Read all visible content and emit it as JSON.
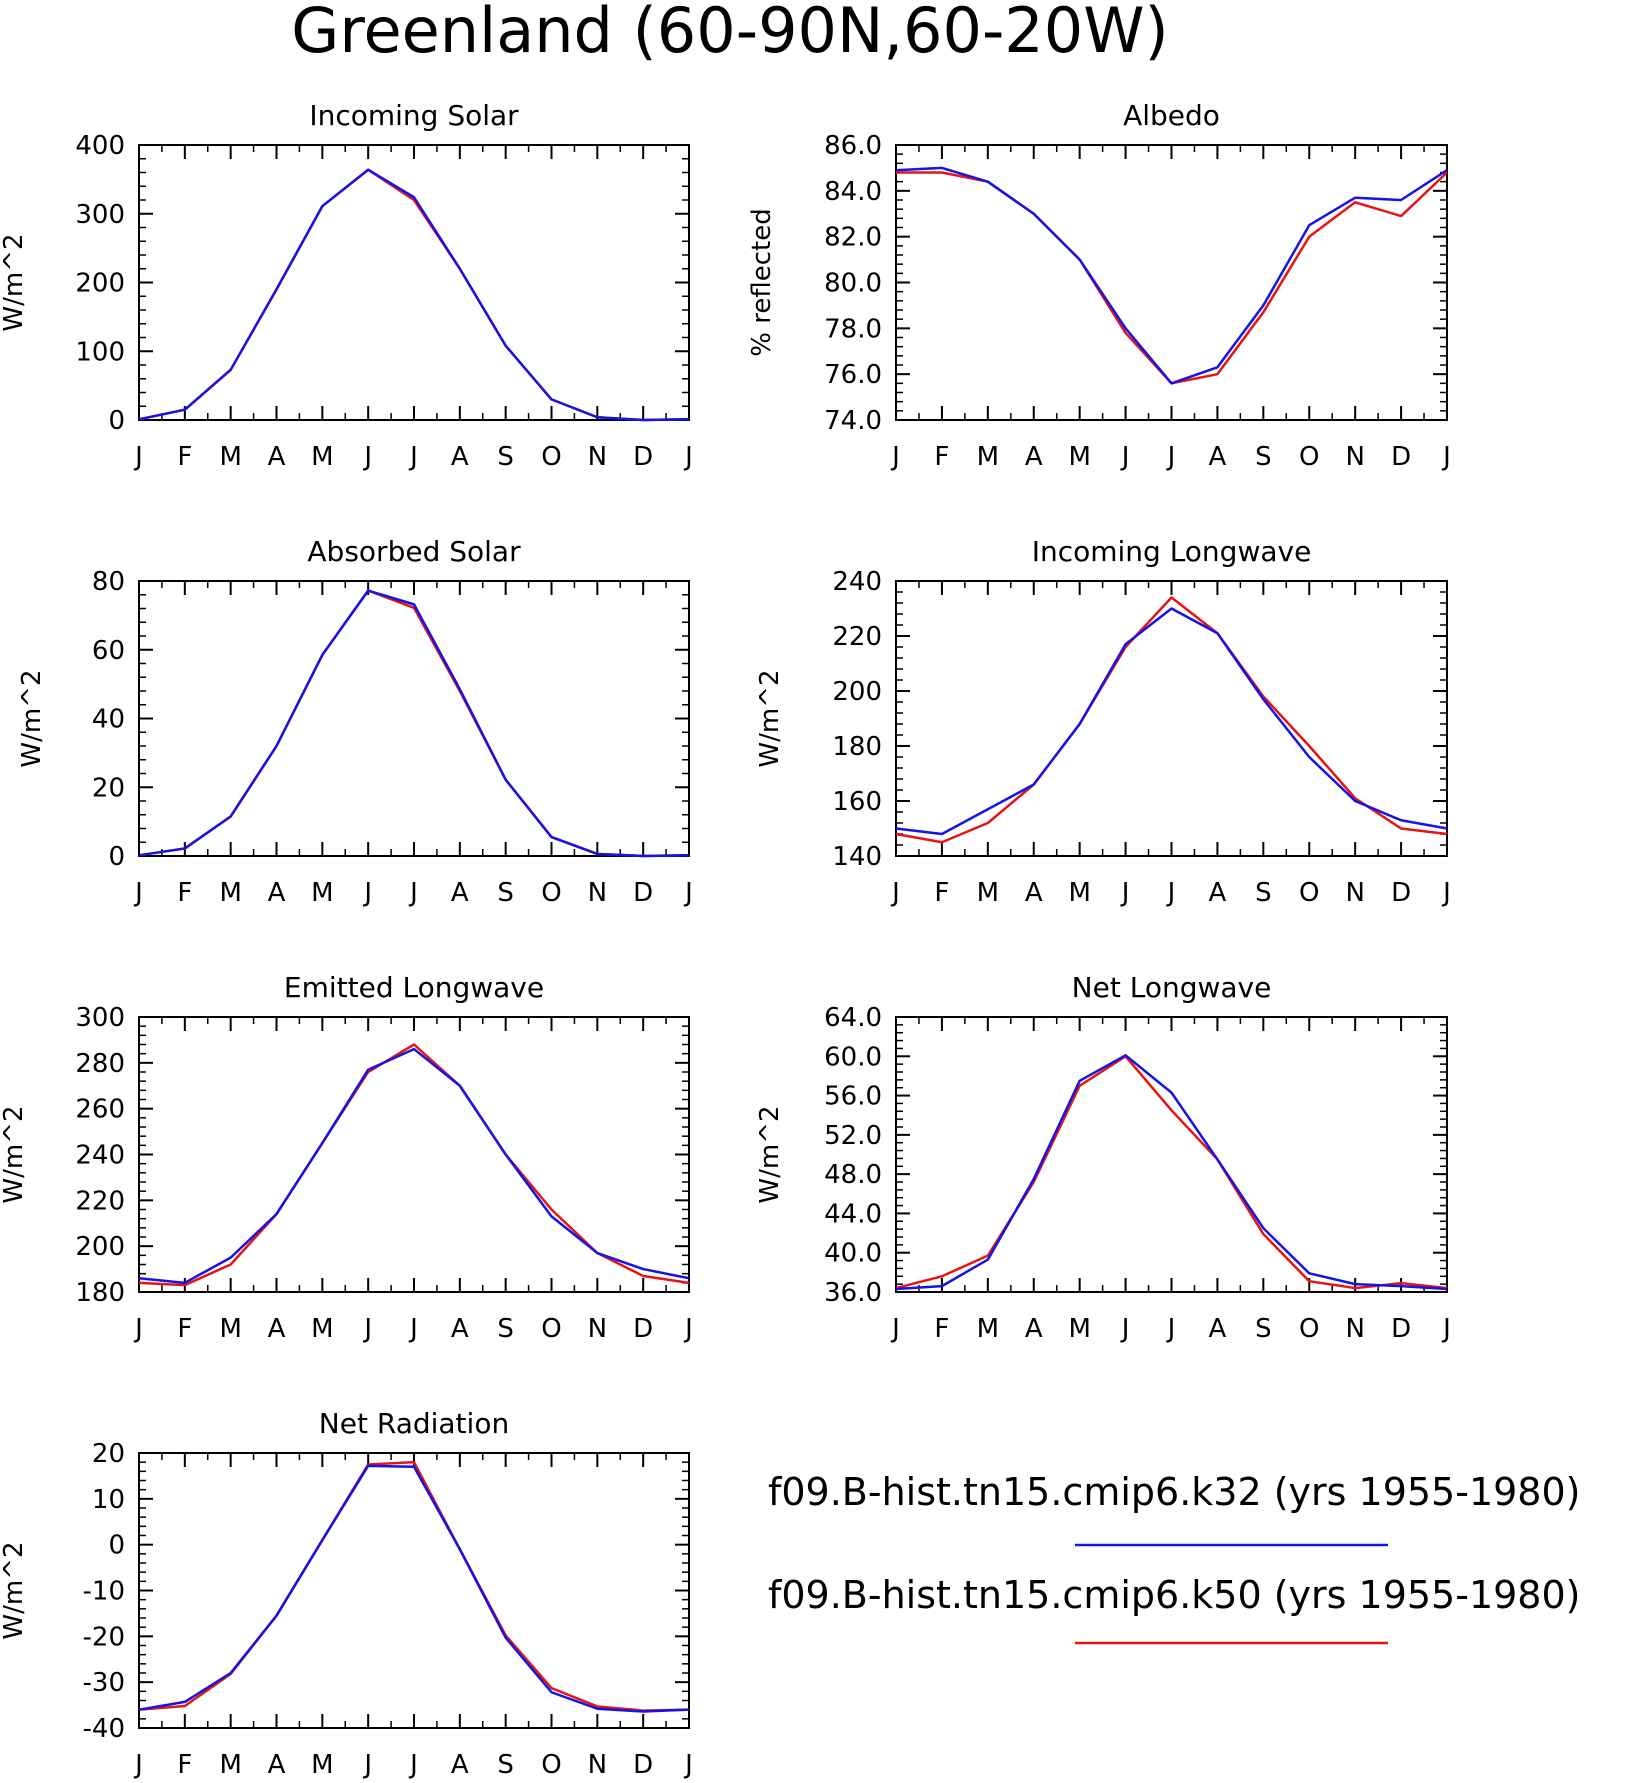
{
  "title": "Greenland (60-90N,60-20W)",
  "colors": {
    "k32": "#1414e6",
    "k50": "#e61414"
  },
  "legend": [
    {
      "label": "f09.B-hist.tn15.cmip6.k32 (yrs 1955-1980)",
      "color": "#1414e6"
    },
    {
      "label": "f09.B-hist.tn15.cmip6.k50 (yrs 1955-1980)",
      "color": "#e61414"
    }
  ],
  "chart_data": [
    {
      "type": "line",
      "title": "Incoming Solar",
      "ylabel": "W/m^2",
      "categories": [
        "J",
        "F",
        "M",
        "A",
        "M",
        "J",
        "J",
        "A",
        "S",
        "O",
        "N",
        "D",
        "J"
      ],
      "ylim": [
        0,
        400
      ],
      "yticks": [
        0,
        100,
        200,
        300,
        400
      ],
      "ytick_labels": [
        "0",
        "100",
        "200",
        "300",
        "400"
      ],
      "series": [
        {
          "name": "f09.B-hist.tn15.cmip6.k32",
          "color": "#1414e6",
          "values": [
            1,
            15,
            73,
            190,
            311,
            364,
            324,
            220,
            108,
            30,
            4,
            0,
            1
          ]
        },
        {
          "name": "f09.B-hist.tn15.cmip6.k50",
          "color": "#e61414",
          "values": [
            1,
            15,
            73,
            190,
            311,
            364,
            320,
            220,
            108,
            30,
            4,
            0,
            1
          ]
        }
      ]
    },
    {
      "type": "line",
      "title": "Albedo",
      "ylabel": "% reflected",
      "categories": [
        "J",
        "F",
        "M",
        "A",
        "M",
        "J",
        "J",
        "A",
        "S",
        "O",
        "N",
        "D",
        "J"
      ],
      "ylim": [
        74,
        86
      ],
      "yticks": [
        74,
        76,
        78,
        80,
        82,
        84,
        86
      ],
      "ytick_labels": [
        "74.0",
        "76.0",
        "78.0",
        "80.0",
        "82.0",
        "84.0",
        "86.0"
      ],
      "series": [
        {
          "name": "f09.B-hist.tn15.cmip6.k32",
          "color": "#1414e6",
          "values": [
            84.9,
            85.0,
            84.4,
            83.0,
            81.0,
            78.0,
            75.6,
            76.3,
            79.0,
            82.5,
            83.7,
            83.6,
            84.9
          ]
        },
        {
          "name": "f09.B-hist.tn15.cmip6.k50",
          "color": "#e61414",
          "values": [
            84.8,
            84.8,
            84.4,
            83.0,
            81.0,
            77.8,
            75.6,
            76.0,
            78.7,
            82.0,
            83.5,
            82.9,
            84.8
          ]
        }
      ]
    },
    {
      "type": "line",
      "title": "Absorbed Solar",
      "ylabel": "W/m^2",
      "categories": [
        "J",
        "F",
        "M",
        "A",
        "M",
        "J",
        "J",
        "A",
        "S",
        "O",
        "N",
        "D",
        "J"
      ],
      "ylim": [
        0,
        80
      ],
      "yticks": [
        0,
        20,
        40,
        60,
        80
      ],
      "ytick_labels": [
        "0",
        "20",
        "40",
        "60",
        "80"
      ],
      "series": [
        {
          "name": "f09.B-hist.tn15.cmip6.k32",
          "color": "#1414e6",
          "values": [
            0.2,
            2.2,
            11.5,
            32,
            58.5,
            77.2,
            73.2,
            48.5,
            22.2,
            5.5,
            0.6,
            0.0,
            0.2
          ]
        },
        {
          "name": "f09.B-hist.tn15.cmip6.k50",
          "color": "#e61414",
          "values": [
            0.2,
            2.2,
            11.5,
            32,
            58.5,
            77.2,
            72.2,
            48.0,
            22.2,
            5.5,
            0.6,
            0.0,
            0.2
          ]
        }
      ]
    },
    {
      "type": "line",
      "title": "Incoming Longwave",
      "ylabel": "W/m^2",
      "categories": [
        "J",
        "F",
        "M",
        "A",
        "M",
        "J",
        "J",
        "A",
        "S",
        "O",
        "N",
        "D",
        "J"
      ],
      "ylim": [
        140,
        240
      ],
      "yticks": [
        140,
        160,
        180,
        200,
        220,
        240
      ],
      "ytick_labels": [
        "140",
        "160",
        "180",
        "200",
        "220",
        "240"
      ],
      "series": [
        {
          "name": "f09.B-hist.tn15.cmip6.k32",
          "color": "#1414e6",
          "values": [
            150,
            148,
            157,
            166,
            188,
            217,
            230,
            221,
            197,
            176,
            160,
            153,
            150
          ]
        },
        {
          "name": "f09.B-hist.tn15.cmip6.k50",
          "color": "#e61414",
          "values": [
            148,
            145,
            152,
            166,
            188,
            216,
            234,
            221,
            198,
            180,
            161,
            150,
            148
          ]
        }
      ]
    },
    {
      "type": "line",
      "title": "Emitted Longwave",
      "ylabel": "W/m^2",
      "categories": [
        "J",
        "F",
        "M",
        "A",
        "M",
        "J",
        "J",
        "A",
        "S",
        "O",
        "N",
        "D",
        "J"
      ],
      "ylim": [
        180,
        300
      ],
      "yticks": [
        180,
        200,
        220,
        240,
        260,
        280,
        300
      ],
      "ytick_labels": [
        "180",
        "200",
        "220",
        "240",
        "260",
        "280",
        "300"
      ],
      "series": [
        {
          "name": "f09.B-hist.tn15.cmip6.k32",
          "color": "#1414e6",
          "values": [
            186,
            184,
            195,
            214,
            245,
            277,
            286,
            270,
            240,
            213,
            197,
            190,
            186
          ]
        },
        {
          "name": "f09.B-hist.tn15.cmip6.k50",
          "color": "#e61414",
          "values": [
            184,
            183,
            192,
            214,
            245,
            276,
            288,
            270,
            240,
            216,
            197,
            187,
            184
          ]
        }
      ]
    },
    {
      "type": "line",
      "title": "Net Longwave",
      "ylabel": "W/m^2",
      "categories": [
        "J",
        "F",
        "M",
        "A",
        "M",
        "J",
        "J",
        "A",
        "S",
        "O",
        "N",
        "D",
        "J"
      ],
      "ylim": [
        36,
        64
      ],
      "yticks": [
        36,
        40,
        44,
        48,
        52,
        56,
        60,
        64
      ],
      "ytick_labels": [
        "36.0",
        "40.0",
        "44.0",
        "48.0",
        "52.0",
        "56.0",
        "60.0",
        "64.0"
      ],
      "series": [
        {
          "name": "f09.B-hist.tn15.cmip6.k32",
          "color": "#1414e6",
          "values": [
            36.3,
            36.6,
            39.3,
            47.5,
            57.5,
            60.1,
            56.3,
            49.5,
            42.5,
            37.9,
            36.8,
            36.6,
            36.3
          ]
        },
        {
          "name": "f09.B-hist.tn15.cmip6.k50",
          "color": "#e61414",
          "values": [
            36.4,
            37.6,
            39.7,
            47.2,
            57.0,
            60.0,
            54.5,
            49.5,
            41.9,
            37.1,
            36.4,
            36.9,
            36.4
          ]
        }
      ]
    },
    {
      "type": "line",
      "title": "Net Radiation",
      "ylabel": "W/m^2",
      "categories": [
        "J",
        "F",
        "M",
        "A",
        "M",
        "J",
        "J",
        "A",
        "S",
        "O",
        "N",
        "D",
        "J"
      ],
      "ylim": [
        -40,
        20
      ],
      "yticks": [
        -40,
        -30,
        -20,
        -10,
        0,
        10,
        20
      ],
      "ytick_labels": [
        "-40",
        "-30",
        "-20",
        "-10",
        "0",
        "10",
        "20"
      ],
      "series": [
        {
          "name": "f09.B-hist.tn15.cmip6.k32",
          "color": "#1414e6",
          "values": [
            -36,
            -34.3,
            -28,
            -15.5,
            1,
            17.2,
            17,
            -1,
            -20.3,
            -32.2,
            -35.8,
            -36.4,
            -36
          ]
        },
        {
          "name": "f09.B-hist.tn15.cmip6.k50",
          "color": "#e61414",
          "values": [
            -36,
            -35.2,
            -28.2,
            -15.5,
            1,
            17.5,
            18,
            -1,
            -19.8,
            -31.3,
            -35.3,
            -36.2,
            -36
          ]
        }
      ]
    }
  ]
}
